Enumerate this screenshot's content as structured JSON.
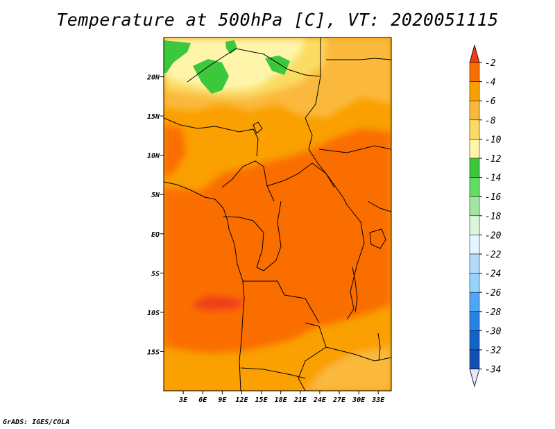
{
  "title": "Temperature at 500hPa [C], VT: 2020051115",
  "credit": "GrADS: IGES/COLA",
  "map": {
    "lon_range": [
      0,
      35
    ],
    "lat_range": [
      -20,
      25
    ],
    "lat_ticks": [
      {
        "lat": 20,
        "label": "20N"
      },
      {
        "lat": 15,
        "label": "15N"
      },
      {
        "lat": 10,
        "label": "10N"
      },
      {
        "lat": 5,
        "label": "5N"
      },
      {
        "lat": 0,
        "label": "EQ"
      },
      {
        "lat": -5,
        "label": "5S"
      },
      {
        "lat": -10,
        "label": "10S"
      },
      {
        "lat": -15,
        "label": "15S"
      }
    ],
    "lon_ticks": [
      {
        "lon": 3,
        "label": "3E"
      },
      {
        "lon": 6,
        "label": "6E"
      },
      {
        "lon": 9,
        "label": "9E"
      },
      {
        "lon": 12,
        "label": "12E"
      },
      {
        "lon": 15,
        "label": "15E"
      },
      {
        "lon": 18,
        "label": "18E"
      },
      {
        "lon": 21,
        "label": "21E"
      },
      {
        "lon": 24,
        "label": "24E"
      },
      {
        "lon": 27,
        "label": "27E"
      },
      {
        "lon": 30,
        "label": "30E"
      },
      {
        "lon": 33,
        "label": "33E"
      }
    ]
  },
  "colorbar": {
    "labels": [
      "-2",
      "-4",
      "-6",
      "-8",
      "-10",
      "-12",
      "-14",
      "-16",
      "-18",
      "-20",
      "-22",
      "-24",
      "-26",
      "-28",
      "-30",
      "-32",
      "-34"
    ],
    "colors": [
      "#f03c14",
      "#fa6e00",
      "#faa000",
      "#fab93c",
      "#fadc64",
      "#fff5aa",
      "#3cc83c",
      "#64dc64",
      "#a0e6a0",
      "#dcf5dc",
      "#e6f5ff",
      "#b4dcfa",
      "#96d2fa",
      "#50a5f5",
      "#2882e6",
      "#1464c8",
      "#1450b4",
      "#0a1e78"
    ],
    "top_arrow_color": "#f03c14",
    "bottom_arrow_color": "#e6e6fa"
  }
}
